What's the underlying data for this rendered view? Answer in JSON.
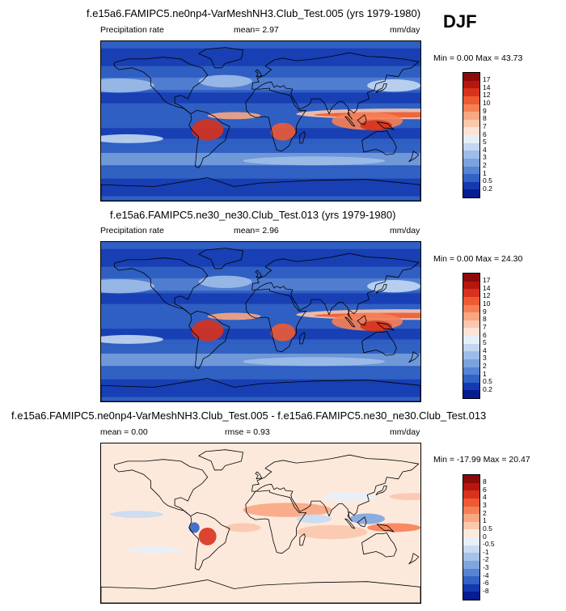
{
  "season": "DJF",
  "panels": [
    {
      "title": "f.e15a6.FAMIPC5.ne0np4-VarMeshNH3.Club_Test.005 (yrs 1979-1980)",
      "left_label": "Precipitation rate",
      "center_label": "mean=  2.97",
      "units": "mm/day",
      "minmax": "Min =  0.00 Max =  43.73",
      "colorbar": {
        "labels": [
          "17",
          "14",
          "12",
          "10",
          "9",
          "8",
          "7",
          "6",
          "5",
          "4",
          "3",
          "2",
          "1",
          "0.5",
          "0.2"
        ],
        "colors": [
          "#8b0a0a",
          "#b5170f",
          "#d8321c",
          "#ee5a33",
          "#f68055",
          "#f9a682",
          "#fbc7ad",
          "#fce3d6",
          "#e6eef9",
          "#c3d7f2",
          "#9dbde8",
          "#7aa2dd",
          "#5683d2",
          "#3262c4",
          "#1439b0",
          "#061c8f"
        ]
      }
    },
    {
      "title": "f.e15a6.FAMIPC5.ne30_ne30.Club_Test.013 (yrs 1979-1980)",
      "left_label": "Precipitation rate",
      "center_label": "mean=  2.96",
      "units": "mm/day",
      "minmax": "Min =  0.00 Max =  24.30",
      "colorbar": {
        "labels": [
          "17",
          "14",
          "12",
          "10",
          "9",
          "8",
          "7",
          "6",
          "5",
          "4",
          "3",
          "2",
          "1",
          "0.5",
          "0.2"
        ],
        "colors": [
          "#8b0a0a",
          "#b5170f",
          "#d8321c",
          "#ee5a33",
          "#f68055",
          "#f9a682",
          "#fbc7ad",
          "#fce3d6",
          "#e6eef9",
          "#c3d7f2",
          "#9dbde8",
          "#7aa2dd",
          "#5683d2",
          "#3262c4",
          "#1439b0",
          "#061c8f"
        ]
      }
    },
    {
      "title": "f.e15a6.FAMIPC5.ne0np4-VarMeshNH3.Club_Test.005 - f.e15a6.FAMIPC5.ne30_ne30.Club_Test.013",
      "left_label": "mean =  0.00",
      "center_label": "rmse =  0.93",
      "units": "mm/day",
      "minmax": "Min = -17.99 Max =  20.47",
      "colorbar": {
        "labels": [
          "8",
          "6",
          "4",
          "3",
          "2",
          "1",
          "0.5",
          "0",
          "-0.5",
          "-1",
          "-2",
          "-3",
          "-4",
          "-6",
          "-8"
        ],
        "colors": [
          "#8b0a0a",
          "#b5170f",
          "#d8321c",
          "#ee5a33",
          "#f68055",
          "#f9a682",
          "#fbc7ad",
          "#fde9dc",
          "#e8eff9",
          "#c9dbf2",
          "#a4c2ea",
          "#7fa5df",
          "#5683d2",
          "#3262c4",
          "#1439b0",
          "#061c8f"
        ]
      }
    }
  ]
}
